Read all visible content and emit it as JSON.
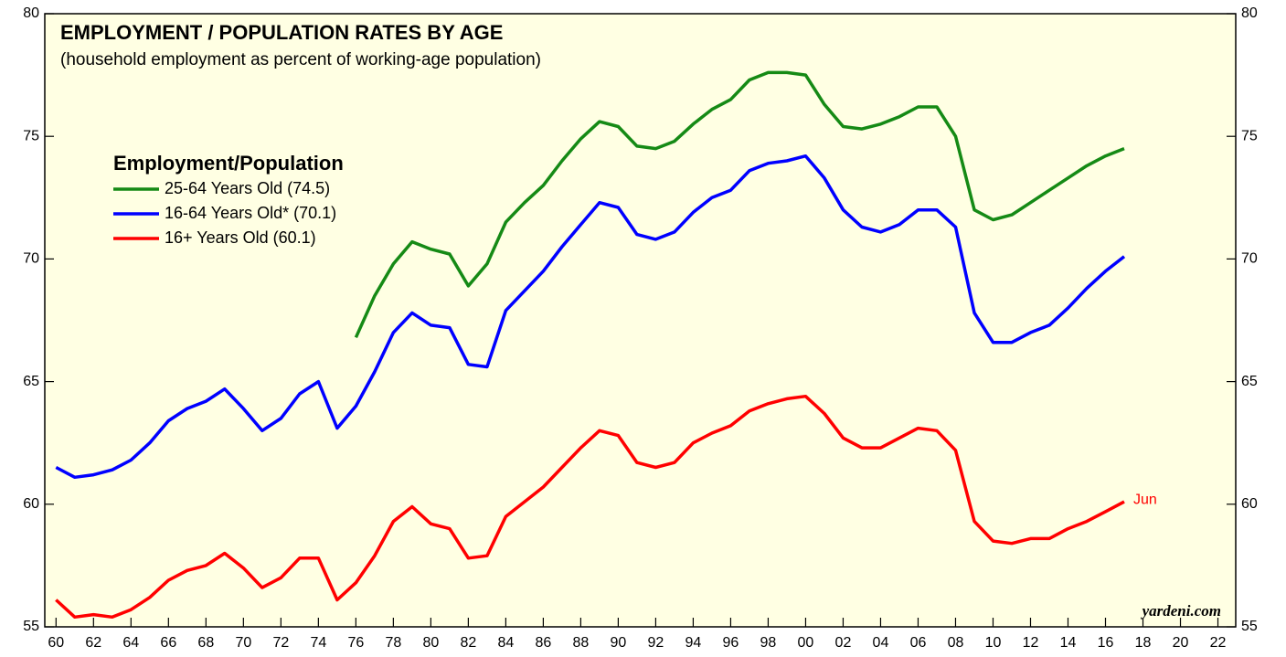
{
  "chart_data": {
    "type": "line",
    "title": "EMPLOYMENT / POPULATION RATES BY AGE",
    "subtitle": "(household employment as percent of working-age population)",
    "legend_title": "Employment/Population",
    "legend": "upper left",
    "annotation": "Jun",
    "credit": "yardeni.com",
    "background": "#ffffe3",
    "x": [
      1960,
      1961,
      1962,
      1963,
      1964,
      1965,
      1966,
      1967,
      1968,
      1969,
      1970,
      1971,
      1972,
      1973,
      1974,
      1975,
      1976,
      1977,
      1978,
      1979,
      1980,
      1981,
      1982,
      1983,
      1984,
      1985,
      1986,
      1987,
      1988,
      1989,
      1990,
      1991,
      1992,
      1993,
      1994,
      1995,
      1996,
      1997,
      1998,
      1999,
      2000,
      2001,
      2002,
      2003,
      2004,
      2005,
      2006,
      2007,
      2008,
      2009,
      2010,
      2011,
      2012,
      2013,
      2014,
      2015,
      2016,
      2017
    ],
    "series": [
      {
        "name": "25-64 Years Old (74.5)",
        "color": "#158a15",
        "values": [
          null,
          null,
          null,
          null,
          null,
          null,
          null,
          null,
          null,
          null,
          null,
          null,
          null,
          null,
          null,
          null,
          66.8,
          68.5,
          69.8,
          70.7,
          70.4,
          70.2,
          68.9,
          69.8,
          71.5,
          72.3,
          73.0,
          74.0,
          74.9,
          75.6,
          75.4,
          74.6,
          74.5,
          74.8,
          75.5,
          76.1,
          76.5,
          77.3,
          77.6,
          77.6,
          77.5,
          76.3,
          75.4,
          75.3,
          75.5,
          75.8,
          76.2,
          76.2,
          75.0,
          72.0,
          71.6,
          71.8,
          72.3,
          72.8,
          73.3,
          73.8,
          74.2,
          74.5
        ]
      },
      {
        "name": "16-64 Years Old* (70.1)",
        "color": "#0000ff",
        "values": [
          61.5,
          61.1,
          61.2,
          61.4,
          61.8,
          62.5,
          63.4,
          63.9,
          64.2,
          64.7,
          63.9,
          63.0,
          63.5,
          64.5,
          65.0,
          63.1,
          64.0,
          65.4,
          67.0,
          67.8,
          67.3,
          67.2,
          65.7,
          65.6,
          67.9,
          68.7,
          69.5,
          70.5,
          71.4,
          72.3,
          72.1,
          71.0,
          70.8,
          71.1,
          71.9,
          72.5,
          72.8,
          73.6,
          73.9,
          74.0,
          74.2,
          73.3,
          72.0,
          71.3,
          71.1,
          71.4,
          72.0,
          72.0,
          71.3,
          67.8,
          66.6,
          66.6,
          67.0,
          67.3,
          68.0,
          68.8,
          69.5,
          70.1
        ]
      },
      {
        "name": "16+ Years Old (60.1)",
        "color": "#ff0000",
        "values": [
          56.1,
          55.4,
          55.5,
          55.4,
          55.7,
          56.2,
          56.9,
          57.3,
          57.5,
          58.0,
          57.4,
          56.6,
          57.0,
          57.8,
          57.8,
          56.1,
          56.8,
          57.9,
          59.3,
          59.9,
          59.2,
          59.0,
          57.8,
          57.9,
          59.5,
          60.1,
          60.7,
          61.5,
          62.3,
          63.0,
          62.8,
          61.7,
          61.5,
          61.7,
          62.5,
          62.9,
          63.2,
          63.8,
          64.1,
          64.3,
          64.4,
          63.7,
          62.7,
          62.3,
          62.3,
          62.7,
          63.1,
          63.0,
          62.2,
          59.3,
          58.5,
          58.4,
          58.6,
          58.6,
          59.0,
          59.3,
          59.7,
          60.1
        ]
      }
    ],
    "xlim": [
      1959.4,
      2022.95
    ],
    "xticks": [
      {
        "value": 1960,
        "label": "60"
      },
      {
        "value": 1962,
        "label": "62"
      },
      {
        "value": 1964,
        "label": "64"
      },
      {
        "value": 1966,
        "label": "66"
      },
      {
        "value": 1968,
        "label": "68"
      },
      {
        "value": 1970,
        "label": "70"
      },
      {
        "value": 1972,
        "label": "72"
      },
      {
        "value": 1974,
        "label": "74"
      },
      {
        "value": 1976,
        "label": "76"
      },
      {
        "value": 1978,
        "label": "78"
      },
      {
        "value": 1980,
        "label": "80"
      },
      {
        "value": 1982,
        "label": "82"
      },
      {
        "value": 1984,
        "label": "84"
      },
      {
        "value": 1986,
        "label": "86"
      },
      {
        "value": 1988,
        "label": "88"
      },
      {
        "value": 1990,
        "label": "90"
      },
      {
        "value": 1992,
        "label": "92"
      },
      {
        "value": 1994,
        "label": "94"
      },
      {
        "value": 1996,
        "label": "96"
      },
      {
        "value": 1998,
        "label": "98"
      },
      {
        "value": 2000,
        "label": "00"
      },
      {
        "value": 2002,
        "label": "02"
      },
      {
        "value": 2004,
        "label": "04"
      },
      {
        "value": 2006,
        "label": "06"
      },
      {
        "value": 2008,
        "label": "08"
      },
      {
        "value": 2010,
        "label": "10"
      },
      {
        "value": 2012,
        "label": "12"
      },
      {
        "value": 2014,
        "label": "14"
      },
      {
        "value": 2016,
        "label": "16"
      },
      {
        "value": 2018,
        "label": "18"
      },
      {
        "value": 2020,
        "label": "20"
      },
      {
        "value": 2022,
        "label": "22"
      }
    ],
    "ylim": [
      55,
      80
    ],
    "yticks": [
      55,
      60,
      65,
      70,
      75,
      80
    ],
    "y2lim": [
      55,
      80
    ],
    "y2ticks": [
      55,
      60,
      65,
      70,
      75,
      80
    ]
  }
}
